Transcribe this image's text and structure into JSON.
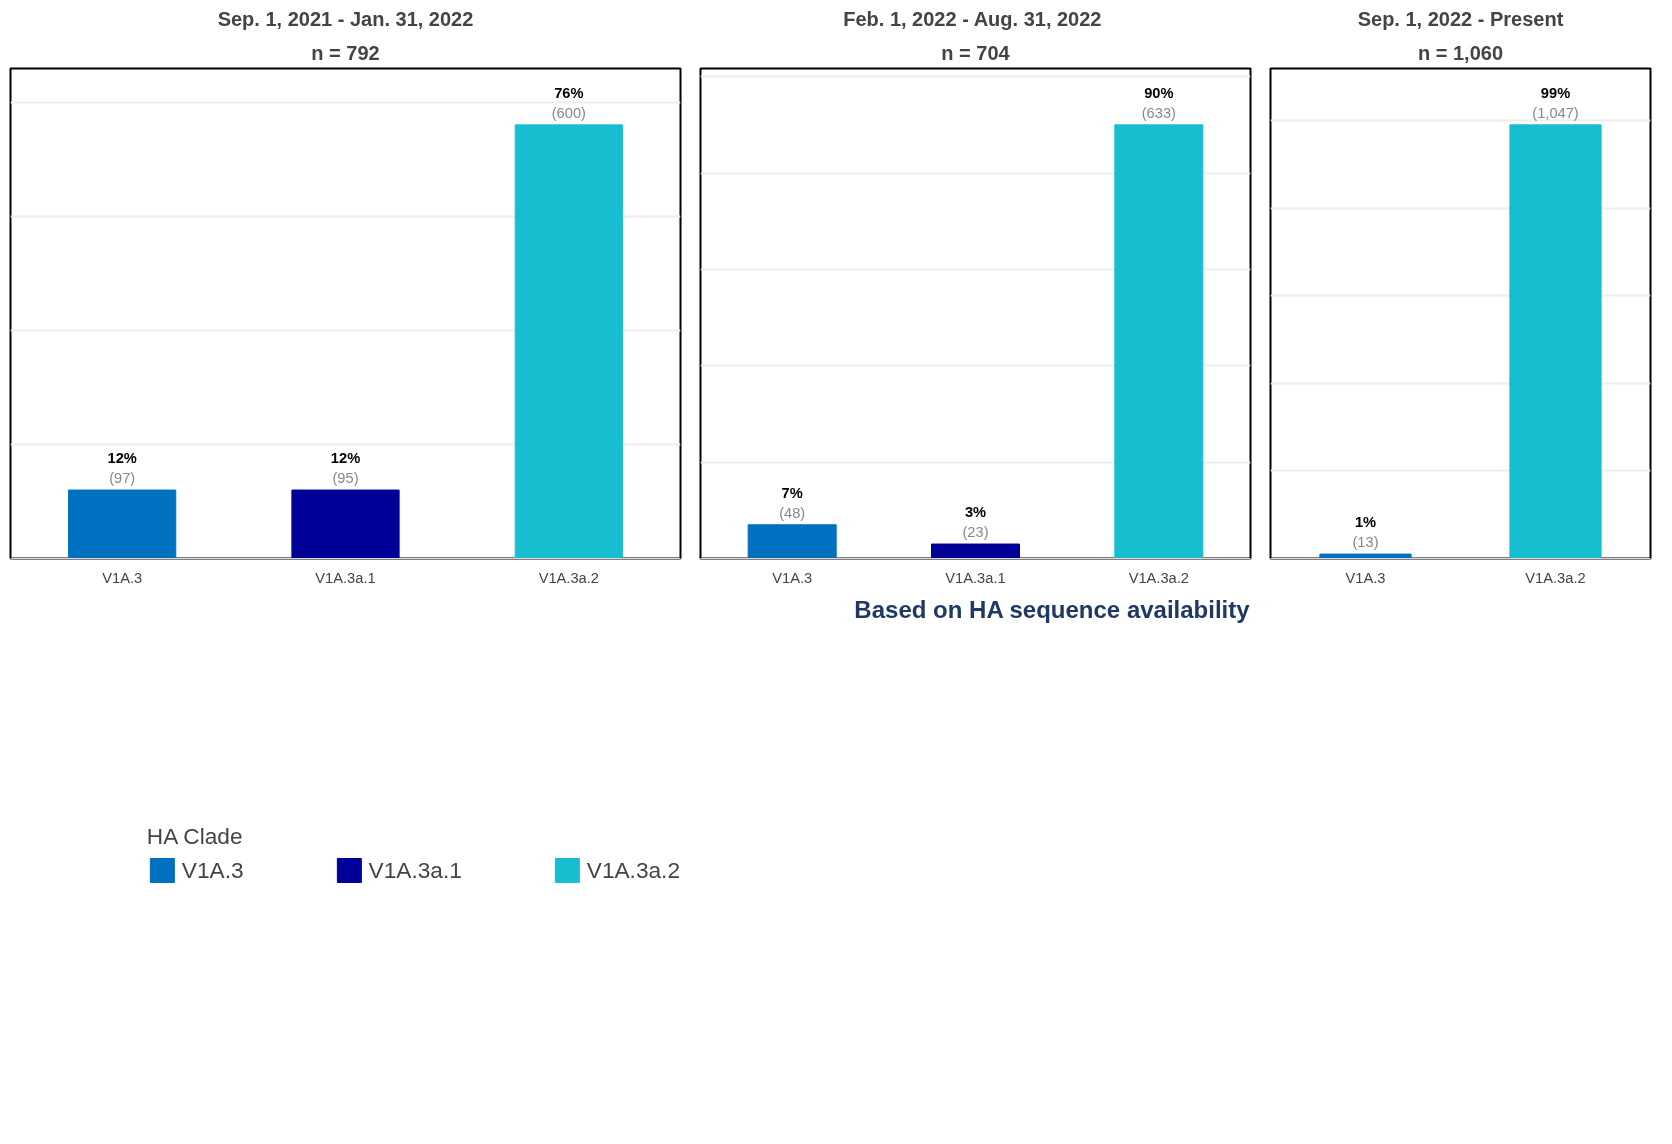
{
  "chart_data": [
    {
      "type": "bar",
      "title": "Sep. 1, 2021 - Jan. 31, 2022",
      "subtitle": "n = 792",
      "categories": [
        "V1A.3",
        "V1A.3a.1",
        "V1A.3a.2"
      ],
      "legend_title": "HA Clade",
      "legend": "bottom",
      "grid": "y",
      "tick_labels": "x",
      "series": [
        {
          "name": "V1A.3",
          "color": "#0070c0",
          "values": [
            12,
            null,
            null
          ],
          "value_labels": [
            "12%",
            null,
            null
          ]
        },
        {
          "name": "V1A.3a.1",
          "color": "#000099",
          "values": [
            null,
            12,
            null
          ],
          "value_labels": [
            null,
            "12%",
            null
          ]
        },
        {
          "name": "V1A.3a.2",
          "color": "#17becf",
          "values": [
            null,
            null,
            76
          ],
          "value_labels": [
            null,
            null,
            "76%"
          ]
        }
      ],
      "annotations": [
        {
          "text": "(97)",
          "x": "V1A.3",
          "y": 12
        },
        {
          "text": "(95)",
          "x": "V1A.3a.1",
          "y": 12
        },
        {
          "text": "(600)",
          "x": "V1A.3a.2",
          "y": 76
        }
      ]
    },
    {
      "type": "bar",
      "title": "Feb. 1, 2022 -  Aug. 31, 2022",
      "subtitle": "n = 704",
      "categories": [
        "V1A.3",
        "V1A.3a.1",
        "V1A.3a.2"
      ],
      "grid": "y",
      "tick_labels": "x",
      "series": [
        {
          "color": "#0070c0",
          "values": [
            7,
            null,
            null
          ],
          "value_labels": [
            "7%",
            null,
            null
          ]
        },
        {
          "color": "#000099",
          "values": [
            null,
            3,
            null
          ],
          "value_labels": [
            null,
            "3%",
            null
          ]
        },
        {
          "color": "#17becf",
          "values": [
            null,
            null,
            90
          ],
          "value_labels": [
            null,
            null,
            "90%"
          ]
        }
      ],
      "annotations": [
        {
          "text": "(48)",
          "x": "V1A.3",
          "y": 7
        },
        {
          "text": "(23)",
          "x": "V1A.3a.1",
          "y": 3
        },
        {
          "text": "(633)",
          "x": "V1A.3a.2",
          "y": 90
        },
        "Based on HA sequence availability"
      ]
    },
    {
      "type": "bar",
      "title": "Sep. 1, 2022 - Present",
      "subtitle": "n = 1,060",
      "categories": [
        "V1A.3",
        "V1A.3a.2"
      ],
      "grid": "y",
      "tick_labels": "x",
      "series": [
        {
          "color": "#0070c0",
          "values": [
            1,
            null
          ],
          "value_labels": [
            "1%",
            null
          ]
        },
        {
          "color": "#17becf",
          "values": [
            null,
            99
          ],
          "value_labels": [
            null,
            "99%"
          ]
        }
      ],
      "annotations": [
        {
          "text": "(13)",
          "x": "V1A.3",
          "y": 1
        },
        {
          "text": "(1,047)",
          "x": "V1A.3a.2",
          "y": 99
        }
      ]
    }
  ]
}
